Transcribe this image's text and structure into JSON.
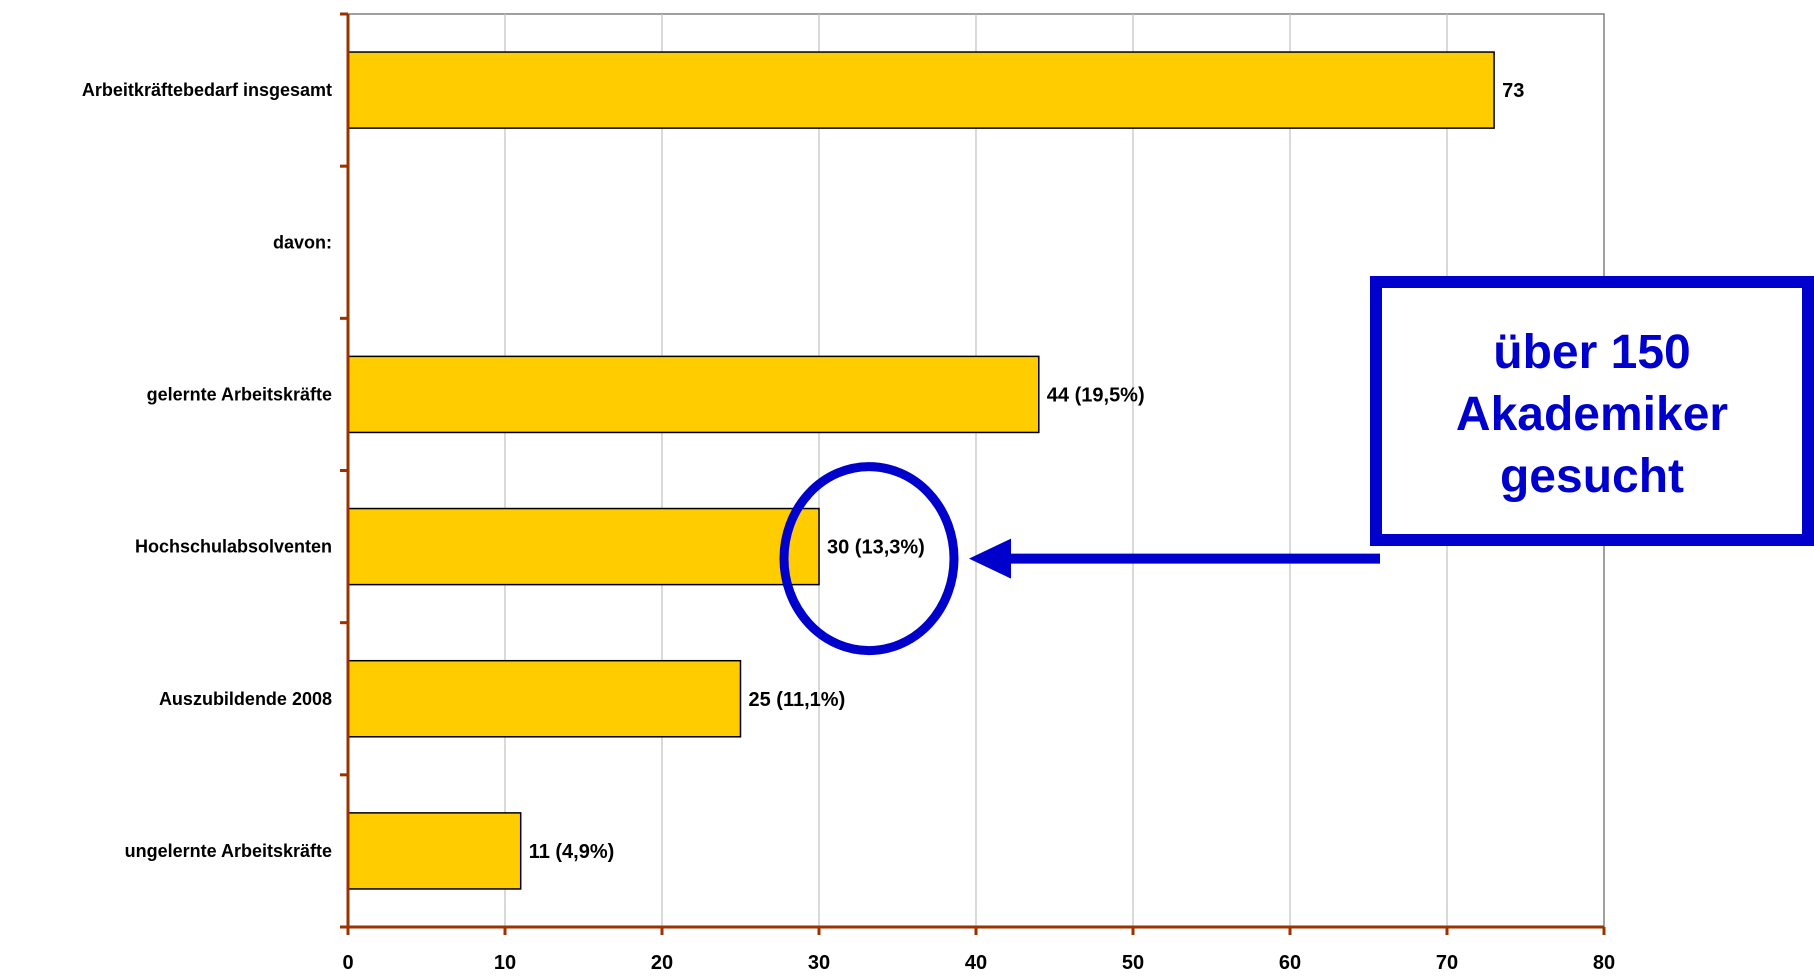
{
  "chart_data": {
    "type": "bar",
    "orientation": "horizontal",
    "categories": [
      "Arbeitkräftebedarf insgesamt",
      "davon:",
      "gelernte Arbeitskräfte",
      "Hochschulabsolventen",
      "Auszubildende 2008",
      "ungelernte Arbeitskräfte"
    ],
    "values": [
      73,
      null,
      44,
      30,
      25,
      11
    ],
    "data_labels": [
      "73",
      "",
      "44 (19,5%)",
      "30 (13,3%)",
      "25 (11,1%)",
      "11 (4,9%)"
    ],
    "xlim": [
      0,
      80
    ],
    "xticks": [
      0,
      10,
      20,
      30,
      40,
      50,
      60,
      70,
      80
    ],
    "grid": "vertical",
    "legend": "none",
    "bar_color": "#FFCC00",
    "axis_color": "#993300",
    "grid_color": "#C0C0C0",
    "annotation": {
      "text_lines": [
        "über 150",
        "Akademiker",
        "gesucht"
      ],
      "color": "#0000CC",
      "highlighted_category": "Hochschulabsolventen"
    }
  }
}
